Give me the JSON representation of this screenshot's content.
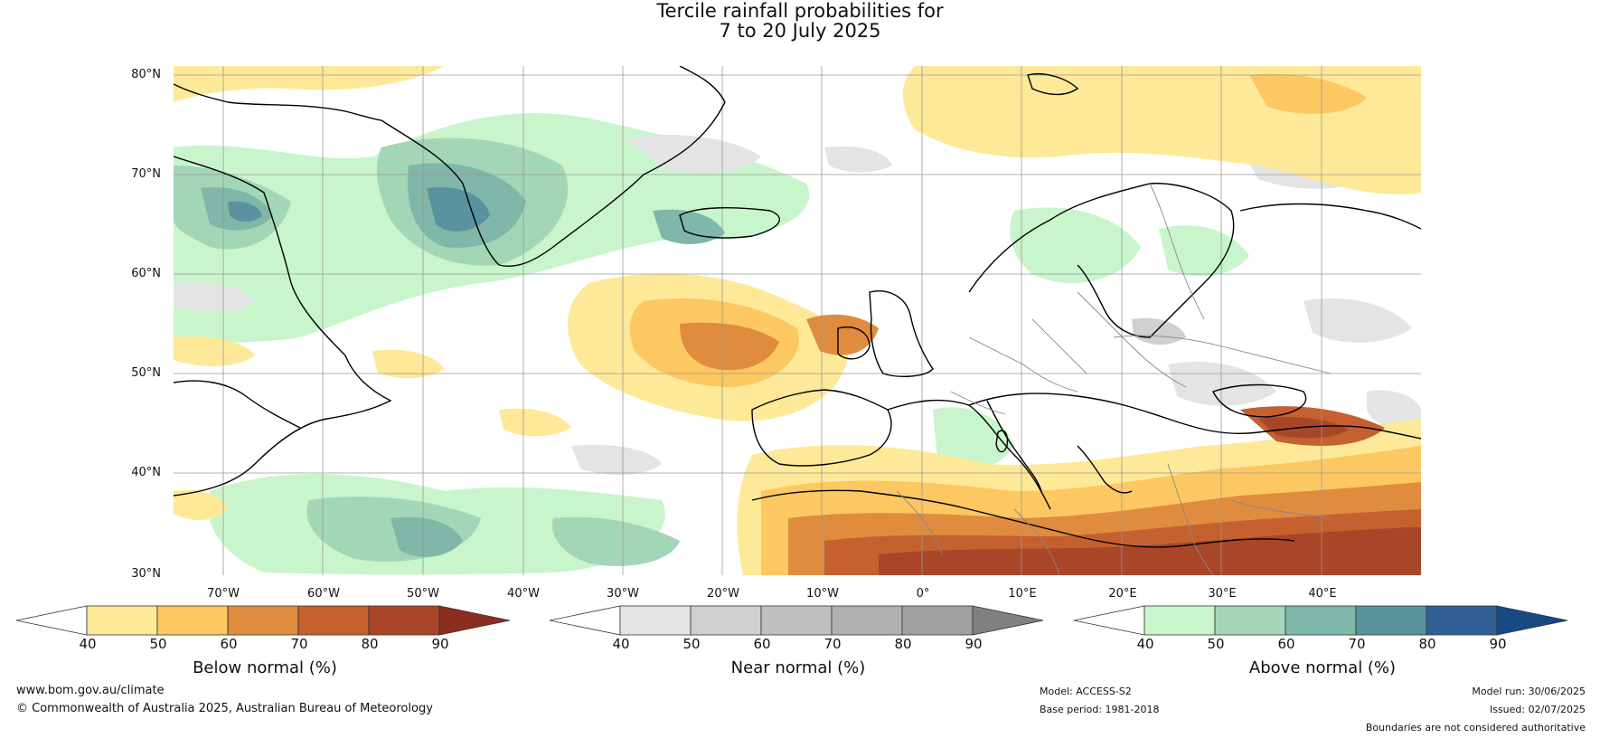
{
  "title": {
    "line1": "Tercile rainfall probabilities for",
    "line2": "7 to 20 July 2025"
  },
  "map": {
    "lat_labels": [
      "80°N",
      "70°N",
      "60°N",
      "50°N",
      "40°N",
      "30°N"
    ],
    "lon_labels": [
      "70°W",
      "60°W",
      "50°W",
      "40°W",
      "30°W",
      "20°W",
      "10°W",
      "0°",
      "10°E",
      "20°E",
      "30°E",
      "40°E"
    ]
  },
  "colorbars": [
    {
      "label": "Below normal (%)",
      "ticks": [
        "40",
        "50",
        "60",
        "70",
        "80",
        "90"
      ],
      "colors": [
        "#ffffff",
        "#fee999",
        "#fdc862",
        "#df8c3e",
        "#c5602f",
        "#a94628",
        "#8c2d1e"
      ]
    },
    {
      "label": "Near normal (%)",
      "ticks": [
        "40",
        "50",
        "60",
        "70",
        "80",
        "90"
      ],
      "colors": [
        "#ffffff",
        "#e4e4e4",
        "#d0d0d0",
        "#c0c0c0",
        "#b0b0b0",
        "#a0a0a0",
        "#808080"
      ]
    },
    {
      "label": "Above normal (%)",
      "ticks": [
        "40",
        "50",
        "60",
        "70",
        "80",
        "90"
      ],
      "colors": [
        "#ffffff",
        "#c9f5cc",
        "#a3d6b7",
        "#7fb7a8",
        "#5a929f",
        "#305f94",
        "#174a84"
      ]
    }
  ],
  "footer": {
    "website": "www.bom.gov.au/climate",
    "copyright": "© Commonwealth of Australia 2025, Australian Bureau of Meteorology",
    "model": "Model: ACCESS-S2",
    "base_period": "Base period: 1981-2018",
    "model_run": "Model run: 30/06/2025",
    "issued": "Issued: 02/07/2025",
    "disclaimer": "Boundaries are not considered authoritative"
  }
}
